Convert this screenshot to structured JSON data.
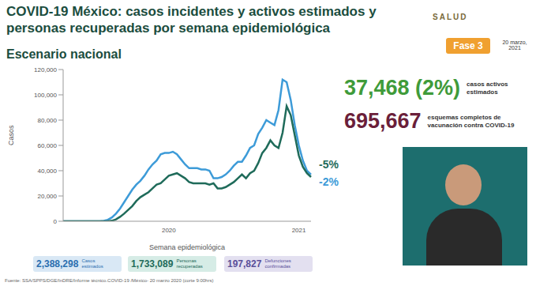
{
  "header": {
    "title": "COVID-19 México: casos incidentes y activos estimados y personas recuperadas por semana epidemiológica",
    "logo_text": "SALUD",
    "phase": "Fase 3",
    "date": "20 marzo, 2021"
  },
  "chart_data": {
    "type": "line",
    "title": "Escenario nacional",
    "x_label": "Semana epidemiológica",
    "y_label": "Casos",
    "categories": [
      null,
      null,
      null,
      null,
      null,
      null,
      null,
      null,
      null,
      null,
      null,
      null,
      null,
      null,
      null,
      null,
      null,
      null,
      null,
      null,
      null,
      null,
      null,
      null,
      null,
      null,
      "2020",
      null,
      null,
      null,
      null,
      null,
      null,
      null,
      null,
      null,
      null,
      null,
      null,
      null,
      null,
      null,
      null,
      null,
      null,
      null,
      null,
      null,
      null,
      null,
      null,
      null,
      null,
      null,
      null,
      null,
      null,
      null,
      "2021",
      null,
      null,
      null
    ],
    "series": [
      {
        "color": "#3d9bd8",
        "values": [
          0,
          0,
          0,
          0,
          0,
          0,
          0,
          0,
          0,
          50,
          300,
          1200,
          3000,
          6000,
          10000,
          15000,
          20000,
          25000,
          29000,
          32000,
          36000,
          41000,
          45000,
          48000,
          53000,
          54000,
          54000,
          55000,
          53000,
          49000,
          45000,
          42000,
          42000,
          42000,
          41000,
          41000,
          40000,
          34000,
          34000,
          35000,
          37000,
          40000,
          44000,
          47000,
          47000,
          52000,
          58000,
          60000,
          69000,
          74000,
          80000,
          78000,
          76000,
          88000,
          112000,
          110000,
          96000,
          76000,
          60000,
          48000,
          40000,
          37000
        ]
      },
      {
        "color": "#1f6b5a",
        "values": [
          0,
          0,
          0,
          0,
          0,
          0,
          0,
          0,
          0,
          0,
          0,
          50,
          400,
          1500,
          3500,
          6000,
          9000,
          12000,
          16000,
          19000,
          21000,
          23000,
          26000,
          29000,
          30000,
          33000,
          36000,
          37000,
          38000,
          36000,
          34000,
          31000,
          30000,
          30000,
          30000,
          30000,
          29000,
          30000,
          26000,
          26000,
          27000,
          29000,
          31000,
          34000,
          37000,
          34000,
          38000,
          40000,
          46000,
          54000,
          58000,
          64000,
          60000,
          58000,
          70000,
          91000,
          84000,
          68000,
          52000,
          43000,
          38000,
          35000
        ]
      }
    ],
    "ylim": [
      0,
      120000
    ],
    "yticks": [
      0,
      {
        "value": 20000,
        "label": "20,000"
      },
      {
        "value": 40000,
        "label": "40,000"
      },
      {
        "value": 60000,
        "label": "60,000"
      },
      {
        "value": 80000,
        "label": "80,000"
      },
      {
        "value": 100000,
        "label": "100,000"
      },
      {
        "value": 120000,
        "label": "120,000"
      }
    ],
    "grid": false,
    "annotations": [
      {
        "text": "-5%",
        "color": "#1f6b5a"
      },
      {
        "text": "-2%",
        "color": "#3d9bd8"
      }
    ]
  },
  "highlights": [
    {
      "value": "37,468 (2%)",
      "label": "casos activos estimados",
      "color": "#3f9b3a"
    },
    {
      "value": "695,667",
      "label": "esquemas completos de vacunación contra COVID-19",
      "color": "#6b1f3a"
    }
  ],
  "summary": [
    {
      "value": "2,388,298",
      "label": "Casos estimados"
    },
    {
      "value": "1,733,089",
      "label": "Personas recuperadas"
    },
    {
      "value": "197,827",
      "label": "Defunciones confirmadas"
    }
  ],
  "footnote": "Fuente: SSA/SPPS/DGE/InDRE/Informe técnico.COVID-19 /México- 20 marzo 2020 (corte 9:00hrs)"
}
